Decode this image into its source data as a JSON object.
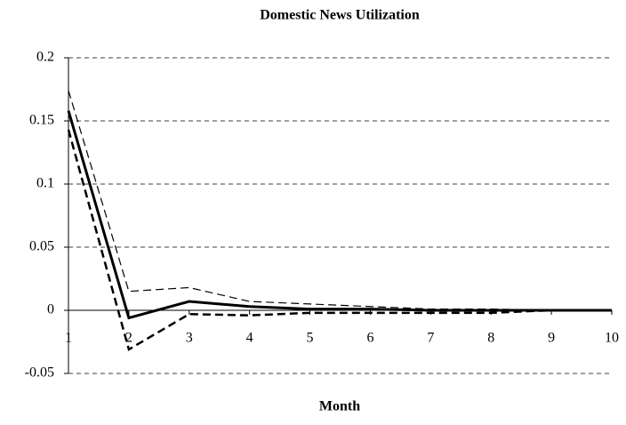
{
  "chart_data": {
    "type": "line",
    "title": "Domestic News Utilization",
    "x_label": "Month",
    "x": [
      1,
      2,
      3,
      4,
      5,
      6,
      7,
      8,
      9,
      10
    ],
    "xlim": [
      1,
      10
    ],
    "xticks": [
      1,
      2,
      3,
      4,
      5,
      6,
      7,
      8,
      9,
      10
    ],
    "ylim": [
      -0.05,
      0.2
    ],
    "yticks": [
      -0.05,
      0,
      0.05,
      0.1,
      0.15,
      0.2
    ],
    "grid": true,
    "series": [
      {
        "color": "#000000",
        "style": "solid",
        "width": 3,
        "values": [
          0.158,
          -0.006,
          0.007,
          0.003,
          0.001,
          0.001,
          0.0,
          0.0,
          0.0,
          0.0
        ]
      },
      {
        "color": "#000000",
        "style": "dashed",
        "width": 1.2,
        "values": [
          0.174,
          0.015,
          0.018,
          0.007,
          0.005,
          0.003,
          0.001,
          0.001,
          0.0,
          0.0
        ]
      },
      {
        "color": "#000000",
        "style": "dashed",
        "width": 2.5,
        "values": [
          0.143,
          -0.031,
          -0.003,
          -0.004,
          -0.002,
          -0.002,
          -0.002,
          -0.002,
          0.0,
          0.0
        ]
      }
    ]
  }
}
